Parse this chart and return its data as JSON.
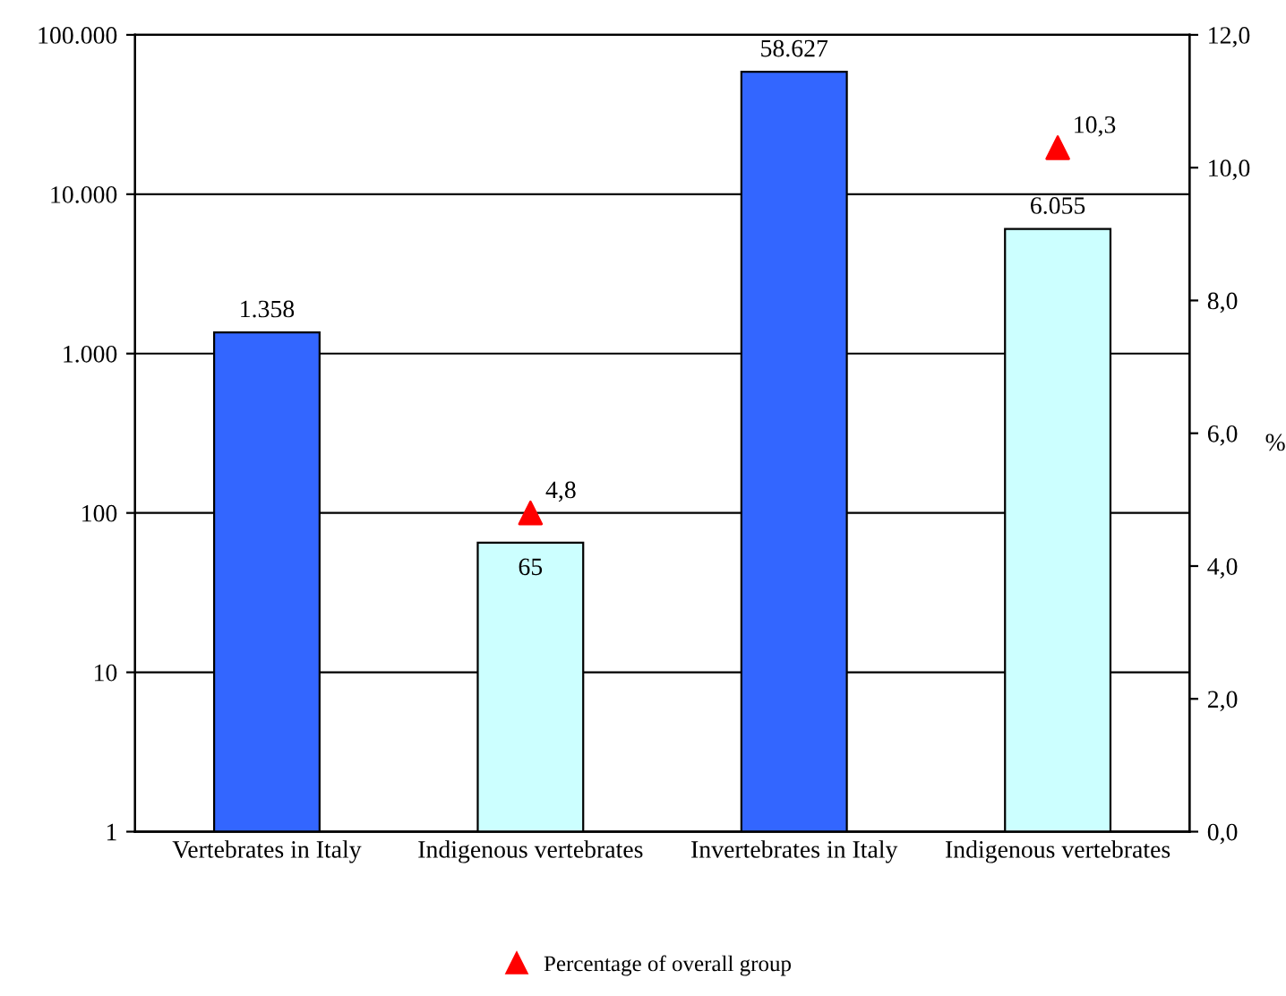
{
  "chart_data": {
    "type": "bar",
    "categories": [
      "Vertebrates in Italy",
      "Indigenous vertebrates",
      "Invertebrates in Italy",
      "Indigenous vertebrates"
    ],
    "series": [
      {
        "colors": [
          "#3366ff",
          "#ccffff",
          "#3366ff",
          "#ccffff"
        ],
        "values": [
          1358,
          65,
          58627,
          6055
        ],
        "value_labels": [
          "1.358",
          "65",
          "58.627",
          "6.055"
        ]
      },
      {
        "type": "scatter",
        "name": "Percentage of overall group",
        "color": "#ff0000",
        "axis": "y2",
        "marker": "triangle",
        "values": [
          null,
          4.8,
          null,
          10.3
        ],
        "value_labels": [
          null,
          "4,8",
          null,
          "10,3"
        ]
      }
    ],
    "log": "y",
    "ylim": [
      1,
      100000
    ],
    "yticks": [
      1,
      10,
      100,
      {
        "value": 1000,
        "label": "1.000"
      },
      {
        "value": 10000,
        "label": "10.000"
      },
      {
        "value": 100000,
        "label": "100.000"
      }
    ],
    "y2lim": [
      0,
      12
    ],
    "y2ticks": [
      {
        "value": 0,
        "label": "0,0"
      },
      {
        "value": 2,
        "label": "2,0"
      },
      {
        "value": 4,
        "label": "4,0"
      },
      {
        "value": 6,
        "label": "6,0"
      },
      {
        "value": 8,
        "label": "8,0"
      },
      {
        "value": 10,
        "label": "10,0"
      },
      {
        "value": 12,
        "label": "12,0"
      }
    ],
    "y2label": "%",
    "grid": "y",
    "legend": "bottom"
  }
}
